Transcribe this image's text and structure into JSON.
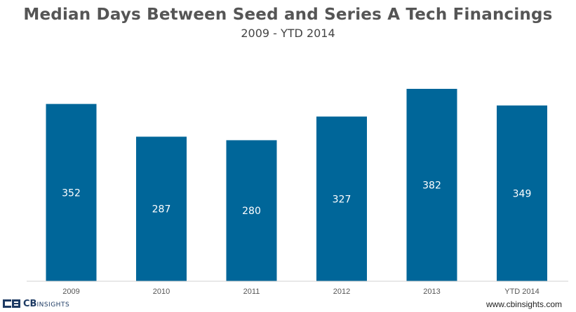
{
  "chart_data": {
    "type": "bar",
    "title": "Median Days Between Seed and Series A Tech Financings",
    "subtitle": "2009 - YTD 2014",
    "categories": [
      "2009",
      "2010",
      "2011",
      "2012",
      "2013",
      "YTD 2014"
    ],
    "values": [
      352,
      287,
      280,
      327,
      382,
      349
    ],
    "data_labels": [
      "352",
      "287",
      "280",
      "327",
      "382",
      "349"
    ],
    "bar_color": "#006699",
    "axis_color": "#d0d0d0",
    "ylim": [
      0,
      410
    ],
    "grid": false,
    "legend": "none"
  },
  "footer": {
    "logo_text": "CB",
    "logo_small": "INSIGHTS",
    "url": "www.cbinsights.com"
  }
}
